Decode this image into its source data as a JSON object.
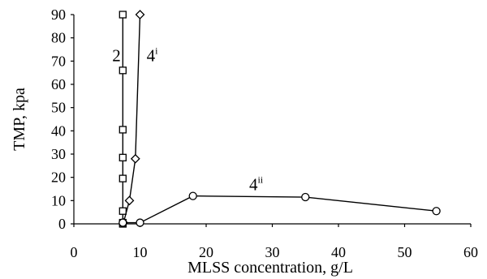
{
  "chart_data": {
    "type": "scatter",
    "xlabel": "MLSS concentration, g/L",
    "ylabel": "TMP, kpa",
    "xlim": [
      0,
      60
    ],
    "ylim": [
      0,
      90
    ],
    "xticks": [
      0,
      10,
      20,
      30,
      40,
      50,
      60
    ],
    "yticks": [
      0,
      10,
      20,
      30,
      40,
      50,
      60,
      70,
      80,
      90
    ],
    "grid": false,
    "series": [
      {
        "name": "2",
        "sup": "",
        "marker": "square",
        "x": [
          7.4,
          7.4,
          7.4,
          7.4,
          7.4,
          7.4,
          7.4,
          7.4
        ],
        "y": [
          0,
          0.5,
          5.5,
          19.5,
          28.5,
          40.5,
          66,
          90
        ]
      },
      {
        "name": "4",
        "sup": "i",
        "marker": "diamond",
        "x": [
          7.5,
          8.4,
          9.3,
          10.0
        ],
        "y": [
          0.5,
          10,
          28,
          90
        ]
      },
      {
        "name": "4",
        "sup": "ii",
        "marker": "circle",
        "x": [
          7.4,
          10.0,
          18.0,
          35.0,
          54.8
        ],
        "y": [
          0.5,
          0.5,
          12,
          11.5,
          5.5
        ]
      }
    ],
    "labels": [
      {
        "series": 0,
        "x": 5.8,
        "y": 70
      },
      {
        "series": 1,
        "x": 11.0,
        "y": 70
      },
      {
        "series": 2,
        "x": 26.5,
        "y": 14.5
      }
    ]
  }
}
